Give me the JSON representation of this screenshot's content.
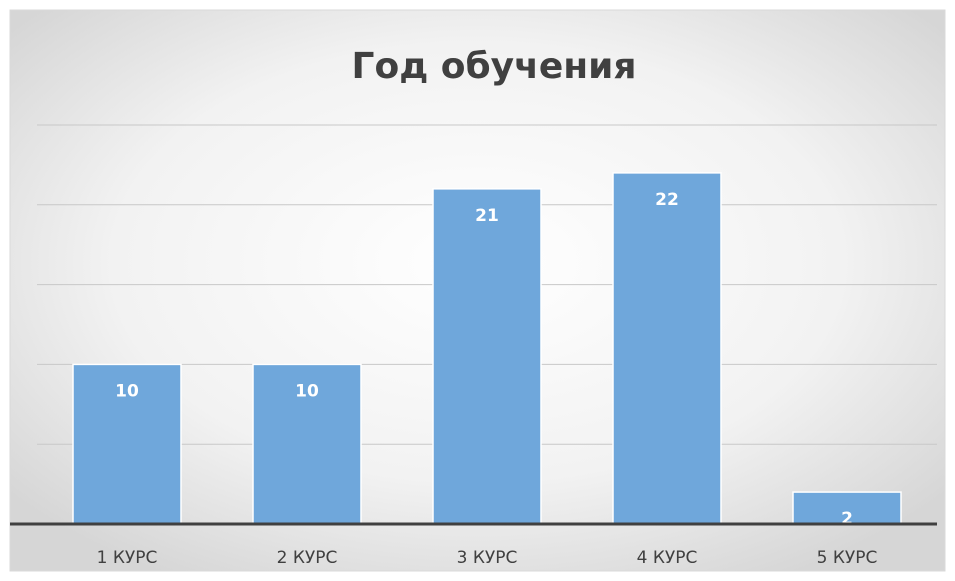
{
  "chart_data": {
    "type": "bar",
    "title": "Год обучения",
    "categories": [
      "1 КУРС",
      "2 КУРС",
      "3 КУРС",
      "4 КУРС",
      "5 КУРС"
    ],
    "values": [
      10,
      10,
      21,
      22,
      2
    ],
    "color": "#6fa7db",
    "ylim": [
      0,
      25
    ],
    "yticks": [
      0,
      5,
      10,
      15,
      20,
      25
    ],
    "grid": true
  }
}
